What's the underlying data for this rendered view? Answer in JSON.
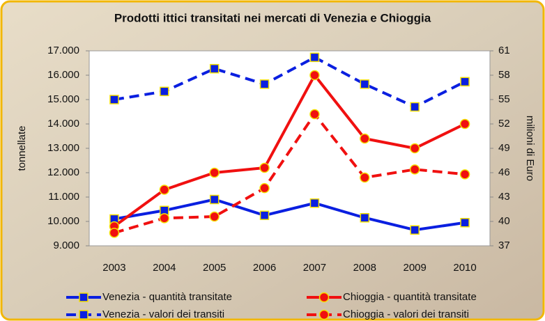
{
  "chart_data": {
    "type": "line",
    "title": "Prodotti ittici transitati nei mercati di Venezia e Chioggia",
    "y_label": "tonnellate",
    "y2_label": "milioni di Euro",
    "categories": [
      "2003",
      "2004",
      "2005",
      "2006",
      "2007",
      "2008",
      "2009",
      "2010"
    ],
    "ylim": [
      9000,
      17000
    ],
    "yticks": [
      {
        "value": 9000,
        "label": "9.000"
      },
      {
        "value": 10000,
        "label": "10.000"
      },
      {
        "value": 11000,
        "label": "11.000"
      },
      {
        "value": 12000,
        "label": "12.000"
      },
      {
        "value": 13000,
        "label": "13.000"
      },
      {
        "value": 14000,
        "label": "14.000"
      },
      {
        "value": 15000,
        "label": "15.000"
      },
      {
        "value": 16000,
        "label": "16.000"
      },
      {
        "value": 17000,
        "label": "17.000"
      }
    ],
    "y2lim": [
      37,
      61
    ],
    "y2ticks": [
      37,
      40,
      43,
      46,
      49,
      52,
      55,
      58,
      61
    ],
    "series": [
      {
        "name": "Venezia - quantità transitate",
        "color": "#0a1fe0",
        "dashed": false,
        "marker": "square",
        "values": [
          10100,
          10450,
          10900,
          10250,
          10750,
          10150,
          9650,
          9950
        ]
      },
      {
        "name": "Chioggia - quantità transitate",
        "color": "#f01010",
        "dashed": false,
        "marker": "circle",
        "values": [
          9800,
          11300,
          12000,
          12200,
          16000,
          13400,
          13000,
          14000
        ]
      },
      {
        "name": "Venezia - valori dei transiti",
        "color": "#0a1fe0",
        "dashed": true,
        "marker": "square",
        "axis": "y2",
        "values": [
          55,
          56,
          58.8,
          56.9,
          60.2,
          56.9,
          54.1,
          57.2
        ]
      },
      {
        "name": "Chioggia - valori dei transiti",
        "color": "#f01010",
        "dashed": true,
        "marker": "circle",
        "axis": "y2",
        "values": [
          38.6,
          40.4,
          40.6,
          44.1,
          53.2,
          45.4,
          46.4,
          45.8
        ]
      }
    ]
  }
}
